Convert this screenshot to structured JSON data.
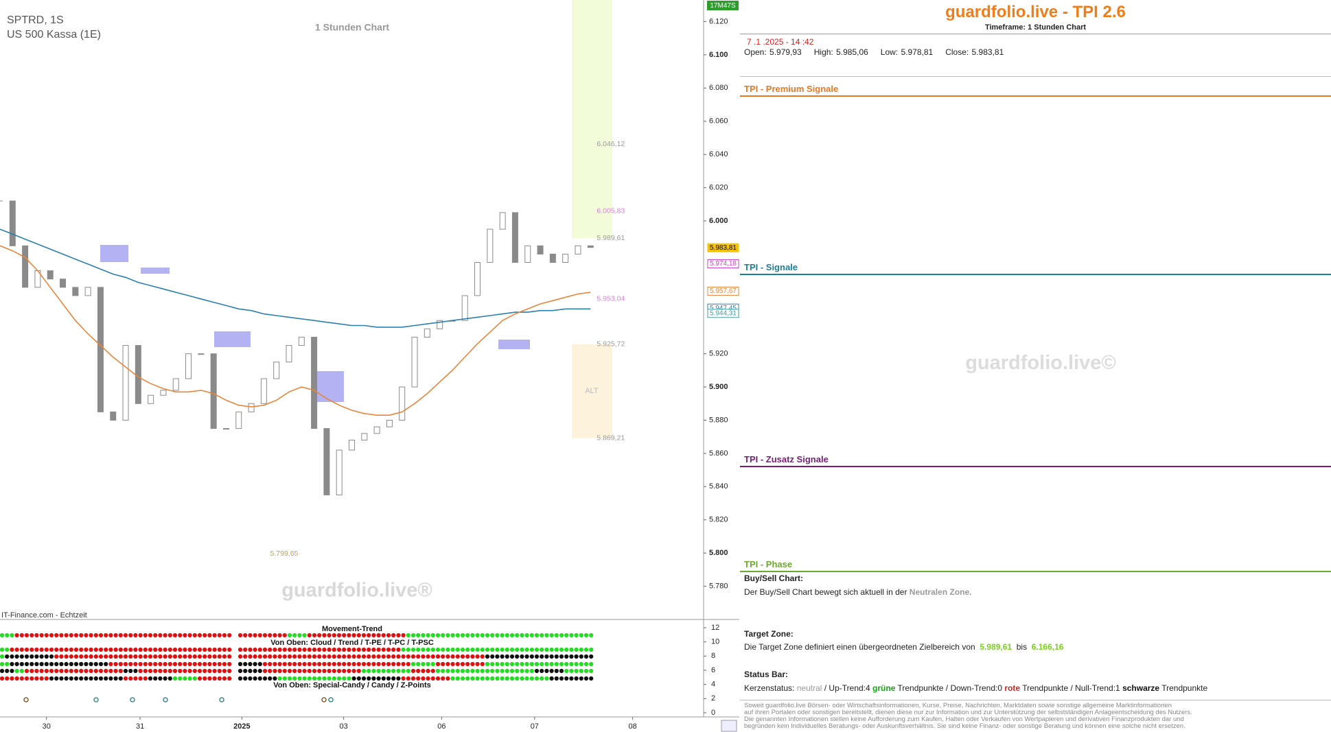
{
  "header": {
    "symbol": "SPTRD, 1S",
    "instrument": "US 500 Kassa (1E)",
    "timeframe_label": "1 Stunden Chart",
    "timer": "17M47S",
    "watermark": "guardfolio.live®",
    "source": "IT-Finance.com - Echtzeit"
  },
  "chart_data": {
    "type": "candlestick",
    "x": [
      0,
      2,
      4,
      6,
      8,
      10,
      12,
      14,
      16,
      18,
      20,
      22,
      24,
      26,
      28,
      30,
      32,
      34,
      36,
      38,
      40,
      42,
      44,
      46,
      48,
      50,
      52,
      54,
      56,
      58,
      60,
      62,
      64,
      66,
      68,
      70,
      72,
      74,
      76,
      78,
      80,
      82,
      84,
      86,
      88,
      90,
      92,
      94
    ],
    "series": [
      {
        "type": "candle",
        "color": "#8a8a8a",
        "values": [
          6.012,
          5.985,
          5.96,
          5.97,
          5.965,
          5.96,
          5.955,
          5.96,
          5.885,
          5.88,
          5.925,
          5.89,
          5.895,
          5.898,
          5.905,
          5.92,
          5.92,
          5.875,
          5.875,
          5.885,
          5.89,
          5.905,
          5.915,
          5.925,
          5.93,
          5.875,
          5.835,
          5.862,
          5.868,
          5.872,
          5.876,
          5.88,
          5.9,
          5.93,
          5.935,
          5.94,
          5.94,
          5.955,
          5.975,
          5.995,
          6.005,
          5.975,
          5.985,
          5.98,
          5.975,
          5.98,
          5.985,
          5.984
        ]
      },
      {
        "type": "line",
        "color": "#2a7fb0",
        "values": [
          5.995,
          5.992,
          5.989,
          5.986,
          5.983,
          5.98,
          5.977,
          5.974,
          5.971,
          5.968,
          5.966,
          5.963,
          5.961,
          5.959,
          5.957,
          5.955,
          5.953,
          5.951,
          5.949,
          5.947,
          5.946,
          5.944,
          5.943,
          5.942,
          5.941,
          5.94,
          5.939,
          5.938,
          5.937,
          5.937,
          5.936,
          5.936,
          5.936,
          5.937,
          5.938,
          5.939,
          5.94,
          5.941,
          5.942,
          5.943,
          5.944,
          5.945,
          5.945,
          5.946,
          5.946,
          5.947,
          5.947,
          5.947
        ]
      },
      {
        "type": "line",
        "color": "#e8853a",
        "values": [
          5.985,
          5.982,
          5.978,
          5.97,
          5.96,
          5.95,
          5.94,
          5.932,
          5.925,
          5.918,
          5.912,
          5.906,
          5.902,
          5.899,
          5.897,
          5.897,
          5.898,
          5.896,
          5.892,
          5.889,
          5.888,
          5.889,
          5.892,
          5.897,
          5.9,
          5.898,
          5.893,
          5.889,
          5.886,
          5.884,
          5.883,
          5.883,
          5.885,
          5.89,
          5.896,
          5.903,
          5.91,
          5.918,
          5.926,
          5.933,
          5.94,
          5.944,
          5.947,
          5.95,
          5.952,
          5.954,
          5.956,
          5.957
        ]
      }
    ],
    "xlim": [
      0,
      112
    ],
    "xticks": [
      {
        "value": 7.4,
        "label": "30"
      },
      {
        "value": 22.3,
        "label": "31"
      },
      {
        "value": 38.5,
        "label": "2025"
      },
      {
        "value": 54.7,
        "label": "03"
      },
      {
        "value": 70.3,
        "label": "06"
      },
      {
        "value": 85.1,
        "label": "07"
      },
      {
        "value": 100.7,
        "label": "08"
      }
    ],
    "ylim": [
      5.76,
      6.133
    ],
    "yticks": [
      {
        "value": 5.78,
        "label": "5.780"
      },
      {
        "value": 5.8,
        "label": "5.800"
      },
      {
        "value": 5.82,
        "label": "5.820"
      },
      {
        "value": 5.84,
        "label": "5.840"
      },
      {
        "value": 5.86,
        "label": "5.860"
      },
      {
        "value": 5.88,
        "label": "5.880"
      },
      {
        "value": 5.9,
        "label": "5.900"
      },
      {
        "value": 5.92,
        "label": "5.920"
      },
      {
        "value": 6.0,
        "label": "6.000"
      },
      {
        "value": 6.02,
        "label": "6.020"
      },
      {
        "value": 6.04,
        "label": "6.040"
      },
      {
        "value": 6.06,
        "label": "6.060"
      },
      {
        "value": 6.08,
        "label": "6.080"
      },
      {
        "value": 6.1,
        "label": "6.100"
      },
      {
        "value": 6.12,
        "label": "6.120"
      }
    ],
    "price_tags": [
      {
        "value": 5.98381,
        "label": "5.983,81",
        "color": "#f5c400"
      },
      {
        "value": 5.97418,
        "label": "5.974,18",
        "color": "#d040d0"
      },
      {
        "value": 5.95767,
        "label": "5.957,67",
        "color": "#e8853a"
      },
      {
        "value": 5.94745,
        "label": "5.947,45",
        "color": "#2a7fb0"
      },
      {
        "value": 5.94431,
        "label": "5.944,31",
        "color": "#3aa0a0"
      }
    ],
    "annotations": [
      {
        "x": 95,
        "value": 6.04612,
        "label": "6.046,12",
        "color": "#999999"
      },
      {
        "x": 95,
        "value": 6.00583,
        "label": "6.005,83",
        "color": "#e07ee0"
      },
      {
        "x": 95,
        "value": 5.98961,
        "label": "5.989,61",
        "color": "#999999"
      },
      {
        "x": 95,
        "value": 5.95304,
        "label": "5.953,04",
        "color": "#e07ee0"
      },
      {
        "x": 95,
        "value": 5.92572,
        "label": "5.925,72",
        "color": "#999999"
      },
      {
        "x": 95,
        "value": 5.86921,
        "label": "5.869,21",
        "color": "#999999"
      },
      {
        "x": 43,
        "value": 5.79965,
        "label": "5.799,65",
        "color": "#b8a060"
      }
    ],
    "target_zone": [
      5.98961,
      6.16616
    ],
    "alt_zone": {
      "label": "ALT",
      "range": [
        5.86921,
        5.92572
      ]
    }
  },
  "indicator": {
    "title": "Movement-Trend",
    "subtitle_top": "Von Oben: Cloud / Trend / T-PE / T-PC / T-PSC",
    "subtitle_bottom": "Von Oben: Special-Candy / Candy / Z-Points",
    "ylim": [
      0,
      12
    ],
    "yticks": [
      0,
      2,
      4,
      6,
      8,
      10,
      12
    ],
    "rows": [
      {
        "left": [
          [
            "#22dd22",
            3
          ],
          [
            "#e01010",
            44
          ]
        ],
        "right": [
          [
            "#e01010",
            10
          ],
          [
            "#22dd22",
            4
          ],
          [
            "#e01010",
            20
          ],
          [
            "#22dd22",
            38
          ]
        ]
      },
      {
        "left": [
          [
            "#22dd22",
            2
          ],
          [
            "#e01010",
            45
          ]
        ],
        "right": [
          [
            "#e01010",
            33
          ],
          [
            "#22dd22",
            39
          ]
        ]
      },
      {
        "left": [
          [
            "#22dd22",
            1
          ],
          [
            "#111111",
            10
          ],
          [
            "#e01010",
            36
          ]
        ],
        "right": [
          [
            "#e01010",
            50
          ],
          [
            "#111111",
            22
          ]
        ]
      },
      {
        "left": [
          [
            "#22dd22",
            2
          ],
          [
            "#111111",
            20
          ],
          [
            "#e01010",
            25
          ]
        ],
        "right": [
          [
            "#111111",
            5
          ],
          [
            "#e01010",
            30
          ],
          [
            "#22dd22",
            5
          ],
          [
            "#e01010",
            10
          ],
          [
            "#22dd22",
            22
          ]
        ]
      },
      {
        "left": [
          [
            "#111111",
            3
          ],
          [
            "#22dd22",
            2
          ],
          [
            "#e01010",
            20
          ],
          [
            "#111111",
            3
          ],
          [
            "#e01010",
            19
          ]
        ],
        "right": [
          [
            "#111111",
            5
          ],
          [
            "#e01010",
            20
          ],
          [
            "#22dd22",
            10
          ],
          [
            "#e01010",
            5
          ],
          [
            "#22dd22",
            20
          ],
          [
            "#111111",
            6
          ],
          [
            "#22dd22",
            6
          ]
        ]
      },
      {
        "left": [
          [
            "#e01010",
            10
          ],
          [
            "#111111",
            15
          ],
          [
            "#e01010",
            5
          ],
          [
            "#111111",
            5
          ],
          [
            "#22dd22",
            5
          ],
          [
            "#e01010",
            7
          ]
        ],
        "right": [
          [
            "#111111",
            8
          ],
          [
            "#22dd22",
            15
          ],
          [
            "#111111",
            10
          ],
          [
            "#e01010",
            10
          ],
          [
            "#22dd22",
            20
          ],
          [
            "#111111",
            9
          ]
        ]
      }
    ]
  },
  "panel": {
    "title": "guardfolio.live - TPI 2.6",
    "timeframe": "Timeframe: 1 Stunden Chart",
    "datetime": "7 .1 .2025 - 14 :42",
    "ohlc": [
      "Open: 5.979,93",
      "High: 5.985,06",
      "Low: 5.978,81",
      "Close: 5.983,81"
    ],
    "sections": [
      {
        "label": "TPI - Premium Signale",
        "color": "#e87722"
      },
      {
        "label": "TPI - Signale",
        "color": "#1a7f9a"
      },
      {
        "label": "TPI - Zusatz Signale",
        "color": "#7a1a7a"
      },
      {
        "label": "TPI - Phase",
        "color": "#6aaa2a"
      }
    ],
    "watermark": "guardfolio.live©",
    "buy_sell": {
      "heading": "Buy/Sell Chart:",
      "text": "Der Buy/Sell Chart bewegt sich aktuell in der",
      "zone": "Neutralen Zone."
    },
    "target": {
      "heading": "Target Zone:",
      "text": "Die Target Zone definiert einen übergeordneten Zielbereich von",
      "from": "5.989,61",
      "between": "bis",
      "to": "6.166,16"
    },
    "status": {
      "heading": "Status Bar:",
      "parts": [
        "Kerzenstatus:",
        "neutral",
        "/ Up-Trend:4",
        "grüne",
        "Trendpunkte",
        "/ Down-Trend:0",
        "rote",
        "Trendpunkte",
        "/ Null-Trend:1",
        "schwarze",
        "Trendpunkte"
      ]
    },
    "disclaimer": [
      "Soweit guardfolio.live Börsen- oder Wirtschaftsinformationen, Kurse, Preise, Nachrichten, Marktdaten sowie sonstige allgemeine Marktinformationen",
      "auf ihren Portalen oder sonstigen bereitstellt, dienen diese nur zur Information und zur Unterstützung der selbstständigen Anlageentscheidung des Nutzers.",
      "Die genannten Informationen stellen keine Aufforderung zum Kaufen, Halten oder Verkaufen von Wertpapieren und derivativen Finanzprodukten dar und",
      "begründen kein Individuelles Beratungs- oder Auskunftsverhältnis. Sie sind keine Finanz- oder sonstige Beratung und können eine solche nicht ersetzen."
    ]
  }
}
